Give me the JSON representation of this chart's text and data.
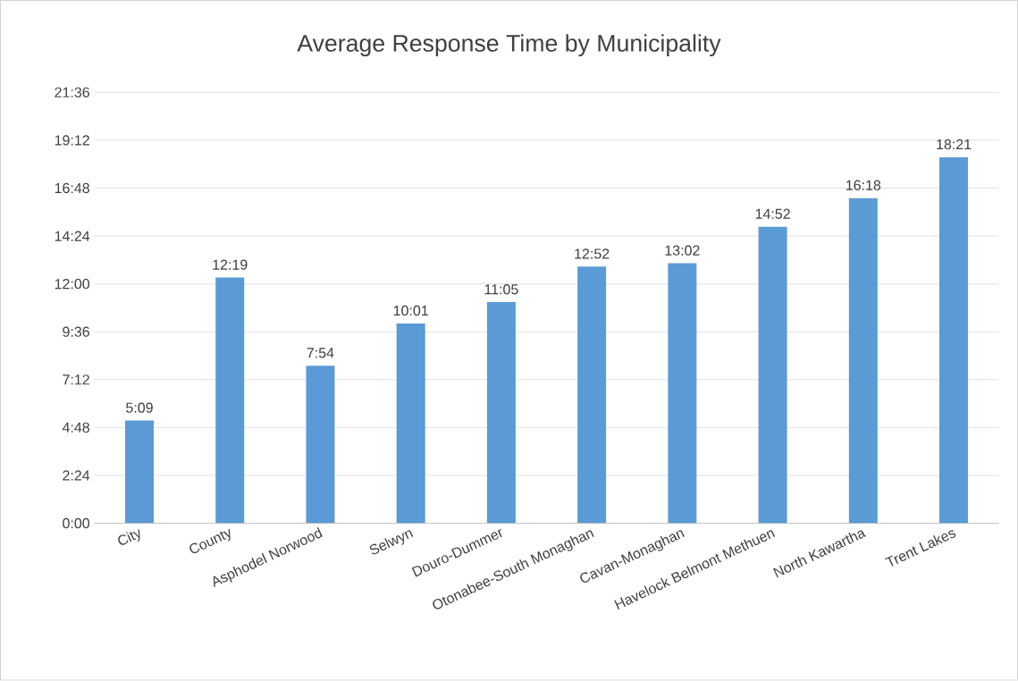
{
  "chart_data": {
    "type": "bar",
    "title": "Average Response Time by Municipality",
    "categories": [
      "City",
      "County",
      "Asphodel Norwood",
      "Selwyn",
      "Douro-Dummer",
      "Otonabee-South Monaghan",
      "Cavan-Monaghan",
      "Havelock Belmont Methuen",
      "North Kawartha",
      "Trent Lakes"
    ],
    "values": [
      309,
      739,
      474,
      601,
      665,
      772,
      782,
      892,
      978,
      1101
    ],
    "value_labels": [
      "5:09",
      "12:19",
      "7:54",
      "10:01",
      "11:05",
      "12:52",
      "13:02",
      "14:52",
      "16:18",
      "18:21"
    ],
    "color": "#5b9bd5",
    "ylim": [
      0,
      1296
    ],
    "yticks": [
      {
        "value": 0,
        "label": "0:00"
      },
      {
        "value": 144,
        "label": "2:24"
      },
      {
        "value": 288,
        "label": "4:48"
      },
      {
        "value": 432,
        "label": "7:12"
      },
      {
        "value": 576,
        "label": "9:36"
      },
      {
        "value": 720,
        "label": "12:00"
      },
      {
        "value": 864,
        "label": "14:24"
      },
      {
        "value": 1008,
        "label": "16:48"
      },
      {
        "value": 1152,
        "label": "19:12"
      },
      {
        "value": 1296,
        "label": "21:36"
      }
    ],
    "grid": "y"
  }
}
